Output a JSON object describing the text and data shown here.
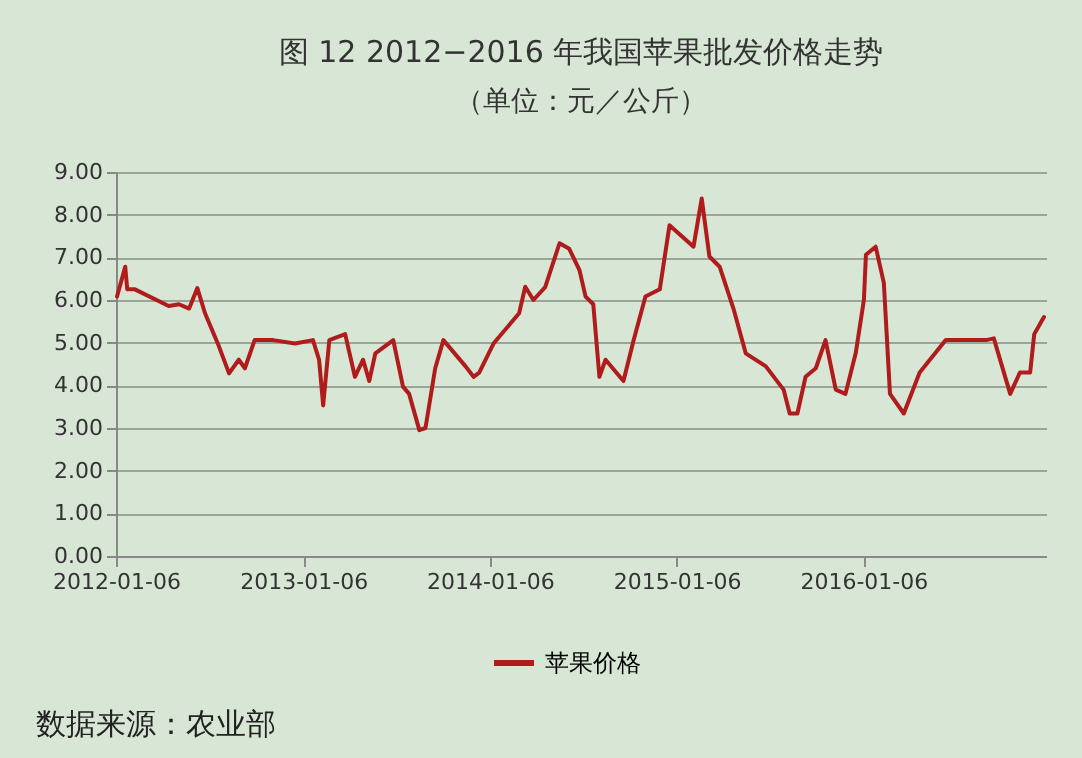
{
  "chart_data": {
    "type": "line",
    "title": "图 12    2012−2016 年我国苹果批发价格走势",
    "subtitle": "（单位：元／公斤）",
    "x": [
      "2012-01-08",
      "2012-01-24",
      "2012-01-28",
      "2012-02-12",
      "2012-04-18",
      "2012-05-08",
      "2012-05-28",
      "2012-06-13",
      "2012-06-28",
      "2012-07-25",
      "2012-08-14",
      "2012-09-02",
      "2012-09-14",
      "2012-10-03",
      "2012-11-08",
      "2012-12-21",
      "2013-01-25",
      "2013-02-06",
      "2013-02-14",
      "2013-02-26",
      "2013-03-29",
      "2013-04-17",
      "2013-05-03",
      "2013-05-15",
      "2013-05-27",
      "2013-07-01",
      "2013-07-20",
      "2013-08-01",
      "2013-08-21",
      "2013-09-02",
      "2013-09-21",
      "2013-10-07",
      "2013-11-19",
      "2013-12-05",
      "2013-12-16",
      "2014-01-13",
      "2014-03-04",
      "2014-03-16",
      "2014-04-01",
      "2014-04-24",
      "2014-05-22",
      "2014-06-10",
      "2014-06-30",
      "2014-07-12",
      "2014-07-27",
      "2014-08-08",
      "2014-08-20",
      "2014-09-24",
      "2014-10-14",
      "2014-11-06",
      "2014-12-04",
      "2014-12-23",
      "2015-02-08",
      "2015-02-24",
      "2015-03-11",
      "2015-03-31",
      "2015-04-27",
      "2015-05-21",
      "2015-06-29",
      "2015-08-03",
      "2015-08-15",
      "2015-08-30",
      "2015-09-15",
      "2015-10-05",
      "2015-10-24",
      "2015-11-13",
      "2015-12-02",
      "2015-12-22",
      "2016-01-07",
      "2016-01-11",
      "2016-01-30",
      "2016-02-15",
      "2016-02-27",
      "2016-03-25",
      "2016-04-25",
      "2016-06-15",
      "2016-09-02",
      "2016-09-17",
      "2016-10-19",
      "2016-11-07",
      "2016-11-27",
      "2016-12-05",
      "2016-12-24"
    ],
    "series": [
      {
        "name": "苹果价格",
        "color": "#b01c1c",
        "values": [
          6.08,
          6.78,
          6.25,
          6.25,
          5.86,
          5.9,
          5.8,
          6.28,
          5.69,
          4.92,
          4.28,
          4.6,
          4.4,
          5.06,
          5.06,
          4.98,
          5.06,
          4.6,
          3.53,
          5.06,
          5.2,
          4.2,
          4.6,
          4.1,
          4.75,
          5.06,
          3.97,
          3.8,
          2.95,
          3.0,
          4.4,
          5.06,
          4.45,
          4.2,
          4.3,
          4.98,
          5.69,
          6.31,
          6.0,
          6.3,
          7.33,
          7.2,
          6.7,
          6.08,
          5.9,
          4.2,
          4.6,
          4.1,
          5.06,
          6.08,
          6.25,
          7.75,
          7.25,
          8.38,
          7.02,
          6.78,
          5.8,
          4.75,
          4.45,
          3.9,
          3.34,
          3.34,
          4.2,
          4.4,
          5.06,
          3.9,
          3.8,
          4.75,
          6.0,
          7.06,
          7.25,
          6.4,
          3.8,
          3.34,
          4.3,
          5.06,
          5.06,
          5.1,
          3.8,
          4.3,
          4.3,
          5.2,
          5.6
        ]
      }
    ],
    "xlim": [
      "2012-01-06",
      "2016-12-28"
    ],
    "xticks": [
      "2012-01-06",
      "2013-01-06",
      "2014-01-06",
      "2015-01-06",
      "2016-01-06"
    ],
    "ylim": [
      0,
      9
    ],
    "yticks": [
      {
        "value": 0,
        "label": "0.00"
      },
      {
        "value": 1,
        "label": "1.00"
      },
      {
        "value": 2,
        "label": "2.00"
      },
      {
        "value": 3,
        "label": "3.00"
      },
      {
        "value": 4,
        "label": "4.00"
      },
      {
        "value": 5,
        "label": "5.00"
      },
      {
        "value": 6,
        "label": "6.00"
      },
      {
        "value": 7,
        "label": "7.00"
      },
      {
        "value": 8,
        "label": "8.00"
      },
      {
        "value": 9,
        "label": "9.00"
      }
    ],
    "grid": "y",
    "legend": "bottom",
    "line_style": "solid",
    "marker": "none",
    "annotations": [
      "数据来源：农业部"
    ]
  }
}
